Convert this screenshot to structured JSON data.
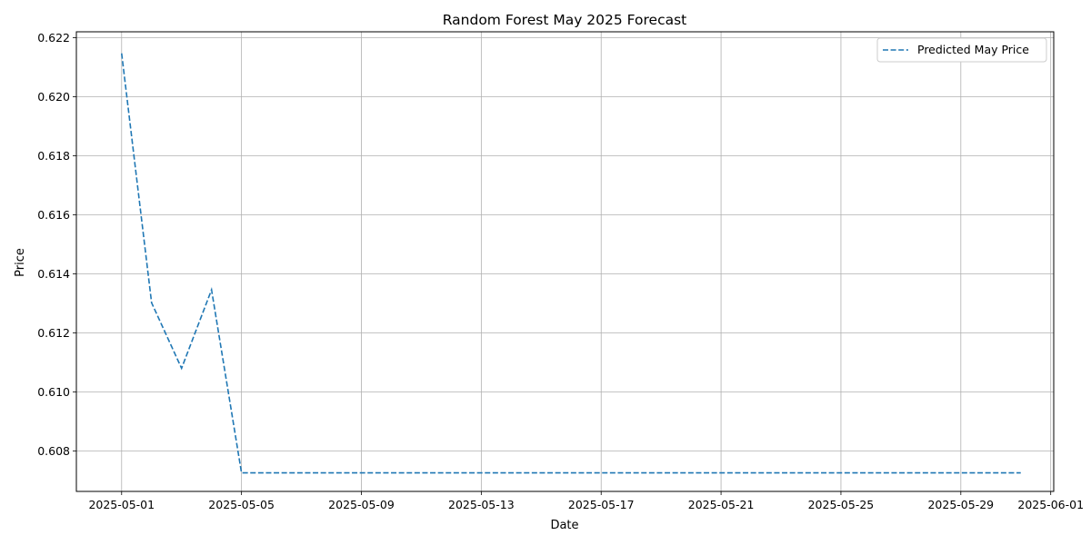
{
  "chart_data": {
    "type": "line",
    "title": "Random Forest May 2025 Forecast",
    "xlabel": "Date",
    "ylabel": "Price",
    "x_tick_labels": [
      "2025-05-01",
      "2025-05-05",
      "2025-05-09",
      "2025-05-13",
      "2025-05-17",
      "2025-05-21",
      "2025-05-25",
      "2025-05-29",
      "2025-06-01"
    ],
    "x_tick_days": [
      0,
      4,
      8,
      12,
      16,
      20,
      24,
      28,
      31
    ],
    "y_tick_labels": [
      "0.608",
      "0.610",
      "0.612",
      "0.614",
      "0.616",
      "0.618",
      "0.620",
      "0.622"
    ],
    "xlim": [
      "2025-04-29",
      "2025-06-01"
    ],
    "ylim": [
      0.60663,
      0.6222
    ],
    "grid": true,
    "legend_position": "top-right",
    "series": [
      {
        "name": "Predicted May Price",
        "color": "#1f77b4",
        "line_style": "dashed",
        "x": [
          "2025-05-01",
          "2025-05-02",
          "2025-05-03",
          "2025-05-04",
          "2025-05-05",
          "2025-05-06",
          "2025-05-07",
          "2025-05-08",
          "2025-05-09",
          "2025-05-10",
          "2025-05-11",
          "2025-05-12",
          "2025-05-13",
          "2025-05-14",
          "2025-05-15",
          "2025-05-16",
          "2025-05-17",
          "2025-05-18",
          "2025-05-19",
          "2025-05-20",
          "2025-05-21",
          "2025-05-22",
          "2025-05-23",
          "2025-05-24",
          "2025-05-25",
          "2025-05-26",
          "2025-05-27",
          "2025-05-28",
          "2025-05-29",
          "2025-05-30",
          "2025-05-31"
        ],
        "y": [
          0.62147,
          0.61302,
          0.6108,
          0.61346,
          0.60726,
          0.60726,
          0.60726,
          0.60726,
          0.60726,
          0.60726,
          0.60726,
          0.60726,
          0.60726,
          0.60726,
          0.60726,
          0.60726,
          0.60726,
          0.60726,
          0.60726,
          0.60726,
          0.60726,
          0.60726,
          0.60726,
          0.60726,
          0.60726,
          0.60726,
          0.60726,
          0.60726,
          0.60726,
          0.60726,
          0.60726
        ]
      }
    ]
  }
}
